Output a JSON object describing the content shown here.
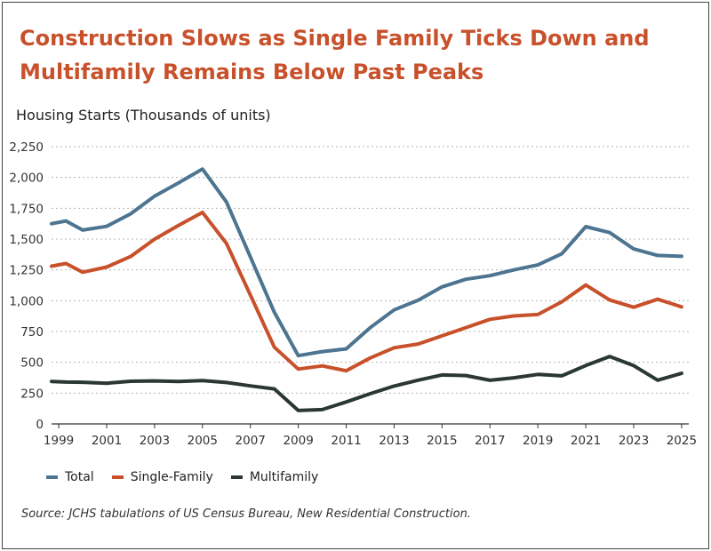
{
  "chart_data": {
    "type": "line",
    "title": "Construction Slows as Single Family Ticks Down and Multifamily Remains Below Past Peaks",
    "ylabel": "Housing Starts (Thousands of units)",
    "xlabel": "",
    "ylim": [
      0,
      2250
    ],
    "yticks": [
      0,
      250,
      500,
      750,
      1000,
      1250,
      1500,
      1750,
      2000,
      2250
    ],
    "ytick_labels": [
      "0",
      "250",
      "500",
      "750",
      "1,000",
      "1,250",
      "1,500",
      "1,750",
      "2,000",
      "2,250"
    ],
    "xlim": [
      1998.7,
      2025.3
    ],
    "xticks": [
      1999,
      2001,
      2003,
      2005,
      2007,
      2009,
      2011,
      2013,
      2015,
      2017,
      2019,
      2021,
      2023,
      2025
    ],
    "xtick_labels": [
      "1999",
      "2001",
      "2003",
      "2005",
      "2007",
      "2009",
      "2011",
      "2013",
      "2015",
      "2017",
      "2019",
      "2021",
      "2023",
      "2025"
    ],
    "x": [
      1998.7,
      1999.3,
      2000,
      2001,
      2002,
      2003,
      2004,
      2005,
      2006,
      2007,
      2008,
      2009,
      2010,
      2011,
      2012,
      2013,
      2014,
      2015,
      2016,
      2017,
      2018,
      2019,
      2020,
      2021,
      2022,
      2023,
      2024,
      2025
    ],
    "grid": true,
    "legend_position": "bottom-left",
    "series": [
      {
        "name": "Total",
        "color": "#4d7490",
        "values": [
          1625,
          1647,
          1573,
          1603,
          1705,
          1848,
          1956,
          2068,
          1801,
          1355,
          906,
          554,
          587,
          609,
          781,
          925,
          1003,
          1112,
          1174,
          1203,
          1250,
          1290,
          1380,
          1601,
          1553,
          1420,
          1367,
          1360
        ]
      },
      {
        "name": "Single-Family",
        "color": "#c8512b",
        "values": [
          1280,
          1302,
          1231,
          1273,
          1359,
          1499,
          1611,
          1716,
          1465,
          1046,
          622,
          445,
          471,
          431,
          535,
          618,
          648,
          715,
          782,
          849,
          876,
          888,
          991,
          1127,
          1005,
          947,
          1012,
          950
        ]
      },
      {
        "name": "Multifamily",
        "color": "#2a3734",
        "values": [
          345,
          340,
          338,
          330,
          346,
          349,
          345,
          352,
          336,
          309,
          284,
          109,
          116,
          178,
          245,
          307,
          355,
          397,
          392,
          354,
          374,
          402,
          390,
          474,
          547,
          473,
          355,
          410
        ]
      }
    ]
  },
  "source": "Source: JCHS tabulations of US Census Bureau, New Residential Construction."
}
